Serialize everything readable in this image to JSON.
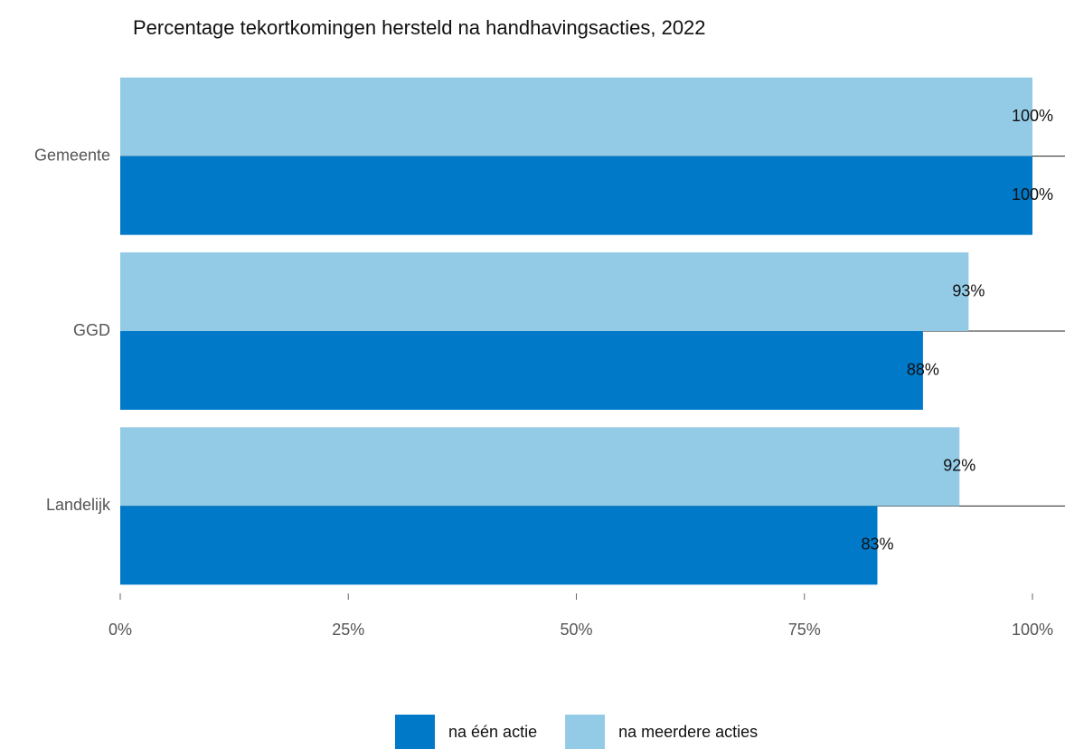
{
  "chart_data": {
    "type": "bar",
    "orientation": "horizontal",
    "title": "Percentage tekortkomingen hersteld na handhavingsacties, 2022",
    "categories": [
      "Gemeente",
      "GGD",
      "Landelijk"
    ],
    "series": [
      {
        "name": "na één actie",
        "color": "#0079c8",
        "values": [
          100,
          88,
          83
        ],
        "value_labels": [
          "100%",
          "88%",
          "83%"
        ]
      },
      {
        "name": "na meerdere acties",
        "color": "#93cbe7",
        "values": [
          100,
          93,
          92
        ],
        "value_labels": [
          "100%",
          "93%",
          "92%"
        ]
      }
    ],
    "xlim": [
      0,
      100
    ],
    "xticks": [
      {
        "value": 0,
        "label": "0%"
      },
      {
        "value": 25,
        "label": "25%"
      },
      {
        "value": 50,
        "label": "50%"
      },
      {
        "value": 75,
        "label": "75%"
      },
      {
        "value": 100,
        "label": "100%"
      }
    ],
    "legend": "bottom"
  }
}
